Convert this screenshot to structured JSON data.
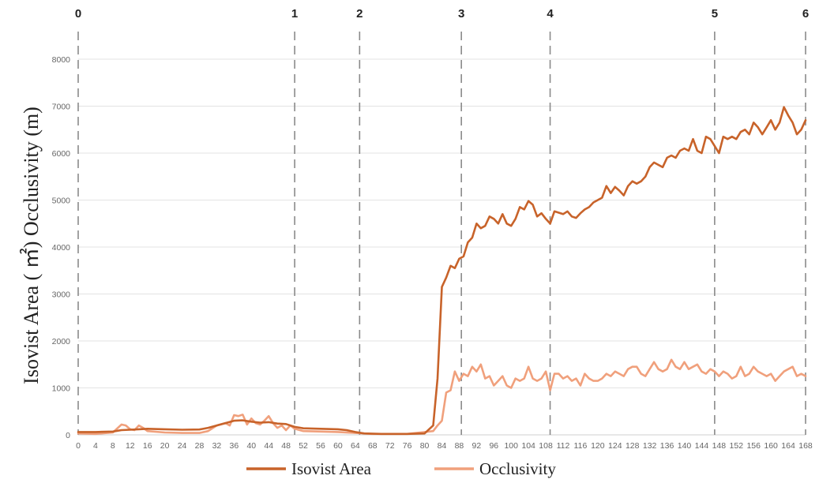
{
  "chart_data": {
    "type": "line",
    "title": "",
    "xlabel": "",
    "ylabel": "Isovist Area ( ㎡) Occlusivity (m)",
    "xlim": [
      0,
      168
    ],
    "ylim": [
      0,
      8000
    ],
    "y_ticks": [
      0,
      1000,
      2000,
      3000,
      4000,
      5000,
      6000,
      7000,
      8000
    ],
    "x_ticks": [
      0,
      4,
      8,
      12,
      16,
      20,
      24,
      28,
      32,
      36,
      40,
      44,
      48,
      52,
      56,
      60,
      64,
      68,
      72,
      76,
      80,
      84,
      88,
      92,
      96,
      100,
      104,
      108,
      112,
      116,
      120,
      124,
      128,
      132,
      136,
      140,
      144,
      148,
      152,
      156,
      160,
      164,
      168
    ],
    "grid": "horizontal",
    "legend_position": "bottom",
    "markers": [
      {
        "label": "0",
        "x": 0
      },
      {
        "label": "1",
        "x": 50
      },
      {
        "label": "2",
        "x": 65
      },
      {
        "label": "3",
        "x": 88.5
      },
      {
        "label": "4",
        "x": 109
      },
      {
        "label": "5",
        "x": 147
      },
      {
        "label": "6",
        "x": 168
      }
    ],
    "series": [
      {
        "name": "Isovist Area",
        "color": "#c8632a",
        "points": [
          [
            0,
            60
          ],
          [
            4,
            60
          ],
          [
            8,
            70
          ],
          [
            10,
            100
          ],
          [
            12,
            110
          ],
          [
            14,
            120
          ],
          [
            16,
            130
          ],
          [
            20,
            120
          ],
          [
            24,
            110
          ],
          [
            28,
            115
          ],
          [
            30,
            150
          ],
          [
            32,
            200
          ],
          [
            34,
            250
          ],
          [
            36,
            300
          ],
          [
            38,
            310
          ],
          [
            40,
            280
          ],
          [
            42,
            260
          ],
          [
            44,
            270
          ],
          [
            46,
            240
          ],
          [
            48,
            230
          ],
          [
            50,
            170
          ],
          [
            52,
            140
          ],
          [
            56,
            130
          ],
          [
            60,
            120
          ],
          [
            62,
            100
          ],
          [
            64,
            60
          ],
          [
            66,
            30
          ],
          [
            70,
            20
          ],
          [
            76,
            20
          ],
          [
            80,
            30
          ],
          [
            82,
            200
          ],
          [
            83,
            1200
          ],
          [
            84,
            3150
          ],
          [
            85,
            3350
          ],
          [
            86,
            3600
          ],
          [
            87,
            3550
          ],
          [
            88,
            3750
          ],
          [
            89,
            3800
          ],
          [
            90,
            4100
          ],
          [
            91,
            4200
          ],
          [
            92,
            4500
          ],
          [
            93,
            4400
          ],
          [
            94,
            4450
          ],
          [
            95,
            4650
          ],
          [
            96,
            4600
          ],
          [
            97,
            4500
          ],
          [
            98,
            4700
          ],
          [
            99,
            4500
          ],
          [
            100,
            4450
          ],
          [
            101,
            4600
          ],
          [
            102,
            4850
          ],
          [
            103,
            4800
          ],
          [
            104,
            4980
          ],
          [
            105,
            4900
          ],
          [
            106,
            4650
          ],
          [
            107,
            4720
          ],
          [
            108,
            4600
          ],
          [
            109,
            4500
          ],
          [
            110,
            4760
          ],
          [
            112,
            4700
          ],
          [
            113,
            4760
          ],
          [
            114,
            4650
          ],
          [
            115,
            4620
          ],
          [
            116,
            4720
          ],
          [
            117,
            4800
          ],
          [
            118,
            4850
          ],
          [
            119,
            4950
          ],
          [
            120,
            5000
          ],
          [
            121,
            5050
          ],
          [
            122,
            5300
          ],
          [
            123,
            5150
          ],
          [
            124,
            5280
          ],
          [
            125,
            5200
          ],
          [
            126,
            5100
          ],
          [
            127,
            5300
          ],
          [
            128,
            5400
          ],
          [
            129,
            5350
          ],
          [
            130,
            5400
          ],
          [
            131,
            5500
          ],
          [
            132,
            5700
          ],
          [
            133,
            5800
          ],
          [
            134,
            5750
          ],
          [
            135,
            5700
          ],
          [
            136,
            5900
          ],
          [
            137,
            5950
          ],
          [
            138,
            5900
          ],
          [
            139,
            6050
          ],
          [
            140,
            6100
          ],
          [
            141,
            6050
          ],
          [
            142,
            6300
          ],
          [
            143,
            6050
          ],
          [
            144,
            6000
          ],
          [
            145,
            6350
          ],
          [
            146,
            6300
          ],
          [
            147,
            6150
          ],
          [
            148,
            6000
          ],
          [
            149,
            6350
          ],
          [
            150,
            6300
          ],
          [
            151,
            6350
          ],
          [
            152,
            6300
          ],
          [
            153,
            6450
          ],
          [
            154,
            6500
          ],
          [
            155,
            6400
          ],
          [
            156,
            6650
          ],
          [
            157,
            6550
          ],
          [
            158,
            6400
          ],
          [
            159,
            6550
          ],
          [
            160,
            6700
          ],
          [
            161,
            6500
          ],
          [
            162,
            6650
          ],
          [
            163,
            6980
          ],
          [
            164,
            6800
          ],
          [
            165,
            6650
          ],
          [
            166,
            6400
          ],
          [
            167,
            6500
          ],
          [
            168,
            6700
          ]
        ]
      },
      {
        "name": "Occlusivity",
        "color": "#f0a07c",
        "points": [
          [
            0,
            30
          ],
          [
            4,
            20
          ],
          [
            8,
            50
          ],
          [
            10,
            220
          ],
          [
            11,
            200
          ],
          [
            12,
            120
          ],
          [
            13,
            100
          ],
          [
            14,
            200
          ],
          [
            15,
            150
          ],
          [
            16,
            80
          ],
          [
            20,
            50
          ],
          [
            24,
            40
          ],
          [
            28,
            40
          ],
          [
            30,
            80
          ],
          [
            32,
            200
          ],
          [
            34,
            250
          ],
          [
            35,
            200
          ],
          [
            36,
            420
          ],
          [
            37,
            400
          ],
          [
            38,
            430
          ],
          [
            39,
            220
          ],
          [
            40,
            350
          ],
          [
            41,
            250
          ],
          [
            42,
            220
          ],
          [
            43,
            300
          ],
          [
            44,
            400
          ],
          [
            45,
            250
          ],
          [
            46,
            150
          ],
          [
            47,
            200
          ],
          [
            48,
            100
          ],
          [
            49,
            200
          ],
          [
            50,
            130
          ],
          [
            52,
            80
          ],
          [
            56,
            70
          ],
          [
            60,
            60
          ],
          [
            64,
            40
          ],
          [
            68,
            20
          ],
          [
            76,
            20
          ],
          [
            80,
            60
          ],
          [
            82,
            80
          ],
          [
            83,
            200
          ],
          [
            84,
            300
          ],
          [
            85,
            900
          ],
          [
            86,
            950
          ],
          [
            87,
            1350
          ],
          [
            88,
            1150
          ],
          [
            89,
            1300
          ],
          [
            90,
            1250
          ],
          [
            91,
            1450
          ],
          [
            92,
            1350
          ],
          [
            93,
            1500
          ],
          [
            94,
            1200
          ],
          [
            95,
            1250
          ],
          [
            96,
            1050
          ],
          [
            97,
            1150
          ],
          [
            98,
            1250
          ],
          [
            99,
            1050
          ],
          [
            100,
            1000
          ],
          [
            101,
            1200
          ],
          [
            102,
            1150
          ],
          [
            103,
            1200
          ],
          [
            104,
            1450
          ],
          [
            105,
            1200
          ],
          [
            106,
            1150
          ],
          [
            107,
            1200
          ],
          [
            108,
            1350
          ],
          [
            109,
            950
          ],
          [
            110,
            1300
          ],
          [
            111,
            1300
          ],
          [
            112,
            1200
          ],
          [
            113,
            1250
          ],
          [
            114,
            1150
          ],
          [
            115,
            1200
          ],
          [
            116,
            1050
          ],
          [
            117,
            1300
          ],
          [
            118,
            1200
          ],
          [
            119,
            1150
          ],
          [
            120,
            1150
          ],
          [
            121,
            1200
          ],
          [
            122,
            1300
          ],
          [
            123,
            1250
          ],
          [
            124,
            1350
          ],
          [
            125,
            1300
          ],
          [
            126,
            1250
          ],
          [
            127,
            1400
          ],
          [
            128,
            1450
          ],
          [
            129,
            1450
          ],
          [
            130,
            1300
          ],
          [
            131,
            1250
          ],
          [
            132,
            1400
          ],
          [
            133,
            1550
          ],
          [
            134,
            1400
          ],
          [
            135,
            1350
          ],
          [
            136,
            1400
          ],
          [
            137,
            1600
          ],
          [
            138,
            1450
          ],
          [
            139,
            1400
          ],
          [
            140,
            1550
          ],
          [
            141,
            1400
          ],
          [
            142,
            1450
          ],
          [
            143,
            1500
          ],
          [
            144,
            1350
          ],
          [
            145,
            1300
          ],
          [
            146,
            1400
          ],
          [
            147,
            1350
          ],
          [
            148,
            1250
          ],
          [
            149,
            1350
          ],
          [
            150,
            1300
          ],
          [
            151,
            1200
          ],
          [
            152,
            1250
          ],
          [
            153,
            1450
          ],
          [
            154,
            1250
          ],
          [
            155,
            1300
          ],
          [
            156,
            1450
          ],
          [
            157,
            1350
          ],
          [
            158,
            1300
          ],
          [
            159,
            1250
          ],
          [
            160,
            1300
          ],
          [
            161,
            1150
          ],
          [
            162,
            1250
          ],
          [
            163,
            1350
          ],
          [
            164,
            1400
          ],
          [
            165,
            1450
          ],
          [
            166,
            1250
          ],
          [
            167,
            1300
          ],
          [
            168,
            1250
          ]
        ]
      }
    ]
  }
}
